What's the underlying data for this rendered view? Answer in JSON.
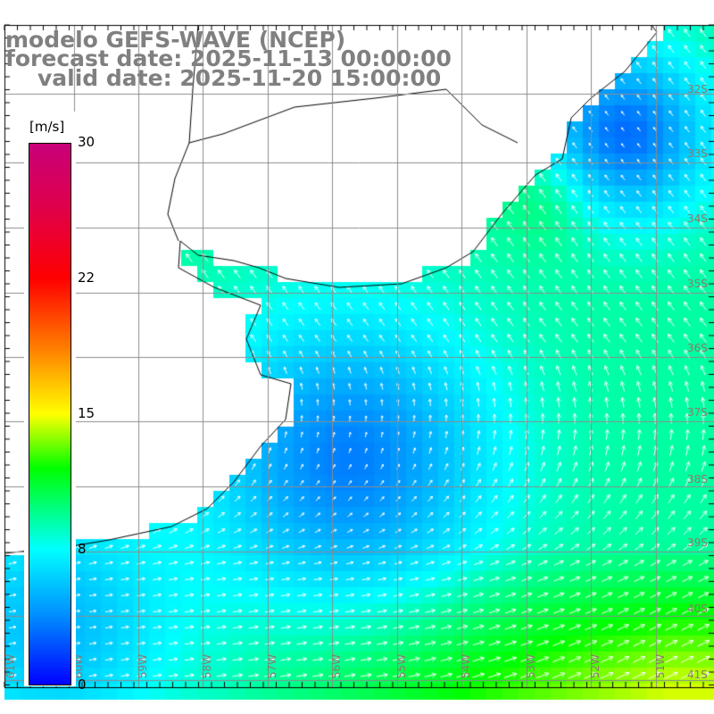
{
  "title": {
    "line1": "modelo GEFS-WAVE (NCEP)",
    "line2": "forecast date: 2025-11-13 00:00:00",
    "line3": "valid date: 2025-11-20 15:00:00"
  },
  "colorbar": {
    "unit": "[m/s]",
    "labels": [
      "30",
      "22",
      "15",
      "8",
      "0"
    ]
  },
  "axes": {
    "lon_labels": [
      "61W",
      "60W",
      "59W",
      "58W",
      "57W",
      "56W",
      "55W",
      "54W",
      "53W",
      "52W",
      "51W"
    ],
    "lat_labels": [
      "32S",
      "33S",
      "34S",
      "35S",
      "36S",
      "37S",
      "38S",
      "39S",
      "40S",
      "41S"
    ]
  },
  "colors": {
    "land": "#ffffff",
    "grid": "#8c8c8c",
    "title": "#808080"
  }
}
